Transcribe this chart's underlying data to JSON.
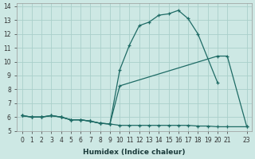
{
  "xlabel": "Humidex (Indice chaleur)",
  "background_color": "#cde8e4",
  "grid_color": "#aacfca",
  "line_color": "#1e6b65",
  "xlim": [
    -0.5,
    23.5
  ],
  "ylim": [
    5.0,
    14.2
  ],
  "xticks": [
    0,
    1,
    2,
    3,
    4,
    5,
    6,
    7,
    8,
    9,
    10,
    11,
    12,
    13,
    14,
    15,
    16,
    17,
    18,
    19,
    20,
    21,
    23
  ],
  "yticks": [
    5,
    6,
    7,
    8,
    9,
    10,
    11,
    12,
    13,
    14
  ],
  "curve1_x": [
    0,
    1,
    2,
    3,
    4,
    5,
    6,
    7,
    8,
    9,
    10,
    11,
    12,
    13,
    14,
    15,
    16,
    17,
    18,
    20
  ],
  "curve1_y": [
    6.1,
    6.0,
    6.0,
    6.1,
    6.0,
    5.8,
    5.8,
    5.7,
    5.55,
    5.5,
    9.4,
    11.2,
    12.6,
    12.85,
    13.35,
    13.45,
    13.7,
    13.1,
    12.0,
    8.5
  ],
  "curve2_x": [
    0,
    1,
    2,
    3,
    4,
    5,
    6,
    7,
    8,
    9,
    10,
    20,
    21,
    23
  ],
  "curve2_y": [
    6.1,
    6.0,
    6.0,
    6.1,
    6.0,
    5.8,
    5.8,
    5.7,
    5.55,
    5.5,
    8.25,
    10.4,
    10.4,
    5.3
  ],
  "curve3_x": [
    0,
    1,
    2,
    3,
    4,
    5,
    6,
    7,
    8,
    9,
    10,
    11,
    12,
    13,
    14,
    15,
    16,
    17,
    18,
    19,
    20,
    21,
    23
  ],
  "curve3_y": [
    6.1,
    6.0,
    6.0,
    6.1,
    6.0,
    5.8,
    5.8,
    5.7,
    5.55,
    5.5,
    5.4,
    5.4,
    5.4,
    5.4,
    5.4,
    5.4,
    5.4,
    5.4,
    5.35,
    5.35,
    5.3,
    5.3,
    5.3
  ],
  "tick_fontsize": 5.5,
  "xlabel_fontsize": 6.5
}
